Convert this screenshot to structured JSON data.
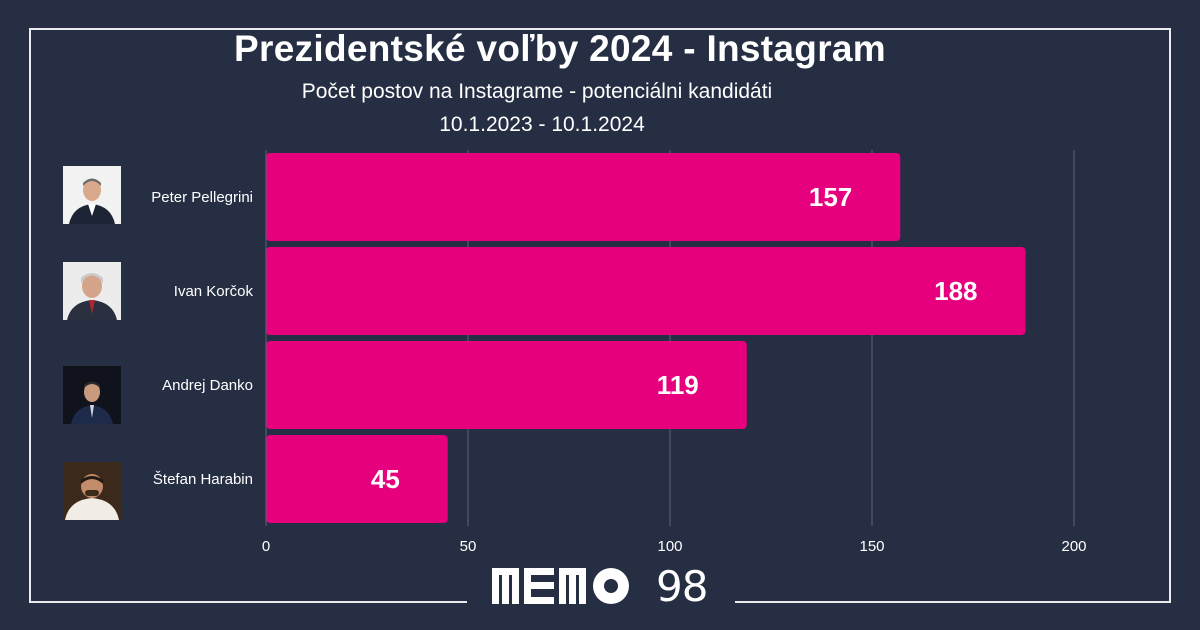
{
  "header": {
    "title": "Prezidentské voľby 2024 - Instagram",
    "subtitle": "Počet postov na Instagrame - potenciálni kandidáti",
    "date_range": "10.1.2023 - 10.1.2024"
  },
  "chart_data": {
    "type": "bar",
    "orientation": "horizontal",
    "categories": [
      "Peter Pellegrini",
      "Ivan Korčok",
      "Andrej Danko",
      "Štefan Harabin"
    ],
    "values": [
      157,
      188,
      119,
      45
    ],
    "xlim": [
      0,
      200
    ],
    "xticks": [
      0,
      50,
      100,
      150,
      200
    ],
    "grid": true,
    "bar_color": "#e6007e"
  },
  "logo": {
    "text": "98"
  },
  "colors": {
    "background": "#252e42",
    "bar": "#e6007e",
    "grid": "#5d6478",
    "frame": "#e9ebef"
  }
}
